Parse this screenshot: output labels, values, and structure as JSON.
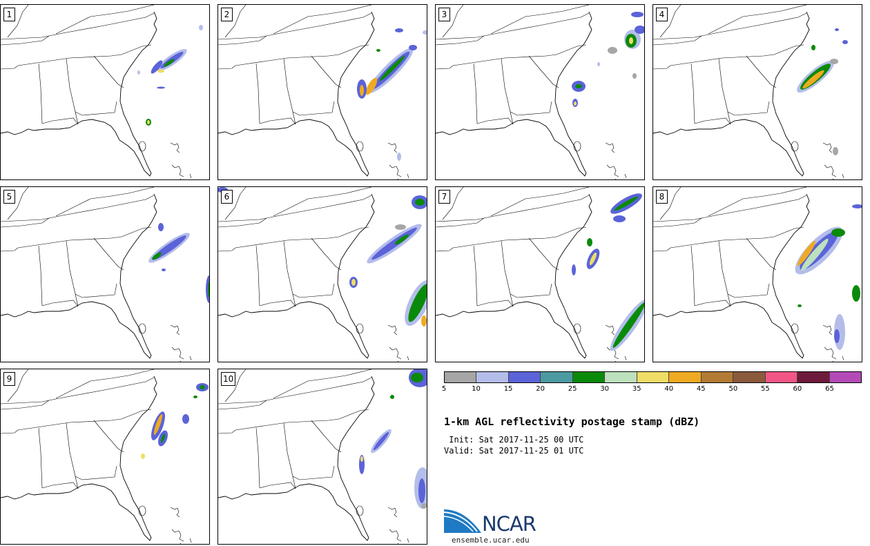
{
  "panels": [
    {
      "label": "1"
    },
    {
      "label": "2"
    },
    {
      "label": "3"
    },
    {
      "label": "4"
    },
    {
      "label": "5"
    },
    {
      "label": "6"
    },
    {
      "label": "7"
    },
    {
      "label": "8"
    },
    {
      "label": "9"
    },
    {
      "label": "10"
    }
  ],
  "colorbar": {
    "colors": [
      "#a6a6a6",
      "#b4bdea",
      "#5b63d8",
      "#4c9aa1",
      "#0a8a0a",
      "#bde0bd",
      "#efdd66",
      "#eeaa22",
      "#b37b33",
      "#8b5a3c",
      "#f25686",
      "#6e1a3c",
      "#b44ab8"
    ],
    "ticks": [
      "5",
      "10",
      "15",
      "20",
      "25",
      "30",
      "35",
      "40",
      "45",
      "50",
      "55",
      "60",
      "65"
    ]
  },
  "title": "1-km AGL reflectivity postage stamp (dBZ)",
  "init_label": " Init: Sat 2017-11-25 00 UTC",
  "valid_label": "Valid: Sat 2017-11-25 01 UTC",
  "logo_text": "NCAR",
  "url": "ensemble.ucar.edu"
}
